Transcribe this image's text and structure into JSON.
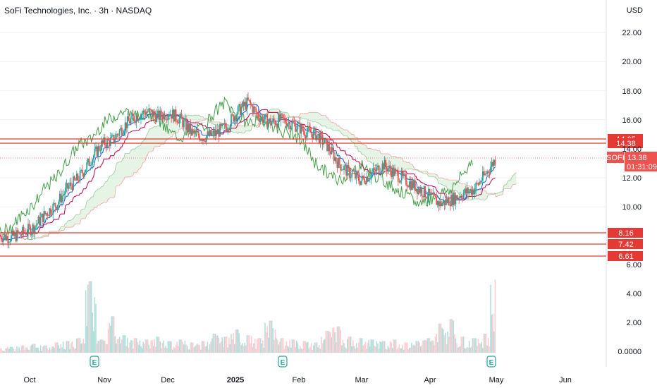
{
  "header": {
    "title": "SoFi Technologies, Inc. · 3h · NASDAQ",
    "currency": "USD"
  },
  "colors": {
    "up": "#26a69a",
    "down": "#ef5350",
    "level_line": "#e53935",
    "tenkan": "#1e53e5",
    "kijun": "#c2185b",
    "lagging": "#43a047",
    "cloud_bull": "#a5d6a7",
    "cloud_bear": "#ef9a9a",
    "grid": "#f0f3fa"
  },
  "chart_data": {
    "type": "candlestick",
    "x_ticks": [
      "Oct",
      "Nov",
      "Dec",
      "2025",
      "Feb",
      "Mar",
      "Apr",
      "May",
      "Jun"
    ],
    "y_ticks": [
      "22.00",
      "20.00",
      "18.00",
      "16.00",
      "14.00",
      "12.00",
      "10.00",
      "6.00"
    ],
    "volume_ticks": [
      "4.00",
      "2.00",
      "0.0000"
    ],
    "ylim": [
      6.6,
      23.0
    ],
    "last_price": {
      "symbol": "SOFI",
      "value": "13.38",
      "countdown": "01:31:09"
    },
    "levels": [
      {
        "label": "14.65",
        "value": 14.65
      },
      {
        "label": "14.38",
        "value": 14.38
      },
      {
        "label": "8.16",
        "value": 8.16
      },
      {
        "label": "7.42",
        "value": 7.42
      },
      {
        "label": "6.61",
        "value": 6.61
      }
    ],
    "earnings_markers": [
      "E",
      "E",
      "E"
    ],
    "closes": [
      [
        0,
        8.0
      ],
      [
        2,
        7.9
      ],
      [
        4,
        8.2
      ],
      [
        6,
        8.6
      ],
      [
        8,
        9.5
      ],
      [
        10,
        10.2
      ],
      [
        12,
        11.3
      ],
      [
        14,
        12.0
      ],
      [
        16,
        13.2
      ],
      [
        18,
        14.3
      ],
      [
        20,
        14.6
      ],
      [
        22,
        15.6
      ],
      [
        24,
        16.2
      ],
      [
        26,
        16.6
      ],
      [
        28,
        16.2
      ],
      [
        30,
        16.5
      ],
      [
        32,
        16.0
      ],
      [
        34,
        15.1
      ],
      [
        36,
        14.8
      ],
      [
        38,
        15.0
      ],
      [
        40,
        15.5
      ],
      [
        42,
        16.5
      ],
      [
        44,
        17.2
      ],
      [
        46,
        16.2
      ],
      [
        48,
        15.8
      ],
      [
        50,
        16.0
      ],
      [
        52,
        15.7
      ],
      [
        54,
        15.2
      ],
      [
        56,
        15.0
      ],
      [
        58,
        14.2
      ],
      [
        60,
        13.0
      ],
      [
        62,
        12.3
      ],
      [
        64,
        11.8
      ],
      [
        66,
        12.3
      ],
      [
        68,
        12.9
      ],
      [
        70,
        12.3
      ],
      [
        72,
        11.8
      ],
      [
        74,
        11.3
      ],
      [
        76,
        10.8
      ],
      [
        78,
        10.2
      ],
      [
        80,
        10.5
      ],
      [
        82,
        10.9
      ],
      [
        84,
        11.2
      ],
      [
        86,
        12.2
      ],
      [
        88,
        13.38
      ]
    ],
    "volumes": [
      [
        0,
        0.3
      ],
      [
        2,
        0.4
      ],
      [
        4,
        0.5
      ],
      [
        6,
        0.6
      ],
      [
        8,
        0.5
      ],
      [
        10,
        0.7
      ],
      [
        12,
        0.8
      ],
      [
        14,
        1.0
      ],
      [
        16,
        4.9
      ],
      [
        18,
        0.9
      ],
      [
        20,
        2.5
      ],
      [
        22,
        1.2
      ],
      [
        24,
        1.0
      ],
      [
        26,
        0.9
      ],
      [
        28,
        1.1
      ],
      [
        30,
        0.8
      ],
      [
        32,
        0.9
      ],
      [
        34,
        0.7
      ],
      [
        36,
        0.8
      ],
      [
        38,
        1.3
      ],
      [
        40,
        1.1
      ],
      [
        42,
        1.6
      ],
      [
        44,
        1.2
      ],
      [
        46,
        1.0
      ],
      [
        48,
        2.2
      ],
      [
        50,
        1.0
      ],
      [
        52,
        0.9
      ],
      [
        54,
        0.8
      ],
      [
        56,
        0.7
      ],
      [
        58,
        1.5
      ],
      [
        60,
        1.8
      ],
      [
        62,
        1.1
      ],
      [
        64,
        1.0
      ],
      [
        66,
        0.9
      ],
      [
        68,
        0.8
      ],
      [
        70,
        0.9
      ],
      [
        72,
        0.7
      ],
      [
        74,
        0.8
      ],
      [
        76,
        1.0
      ],
      [
        78,
        2.0
      ],
      [
        80,
        2.3
      ],
      [
        82,
        1.1
      ],
      [
        84,
        1.0
      ],
      [
        86,
        1.3
      ],
      [
        88,
        5.0
      ]
    ]
  }
}
